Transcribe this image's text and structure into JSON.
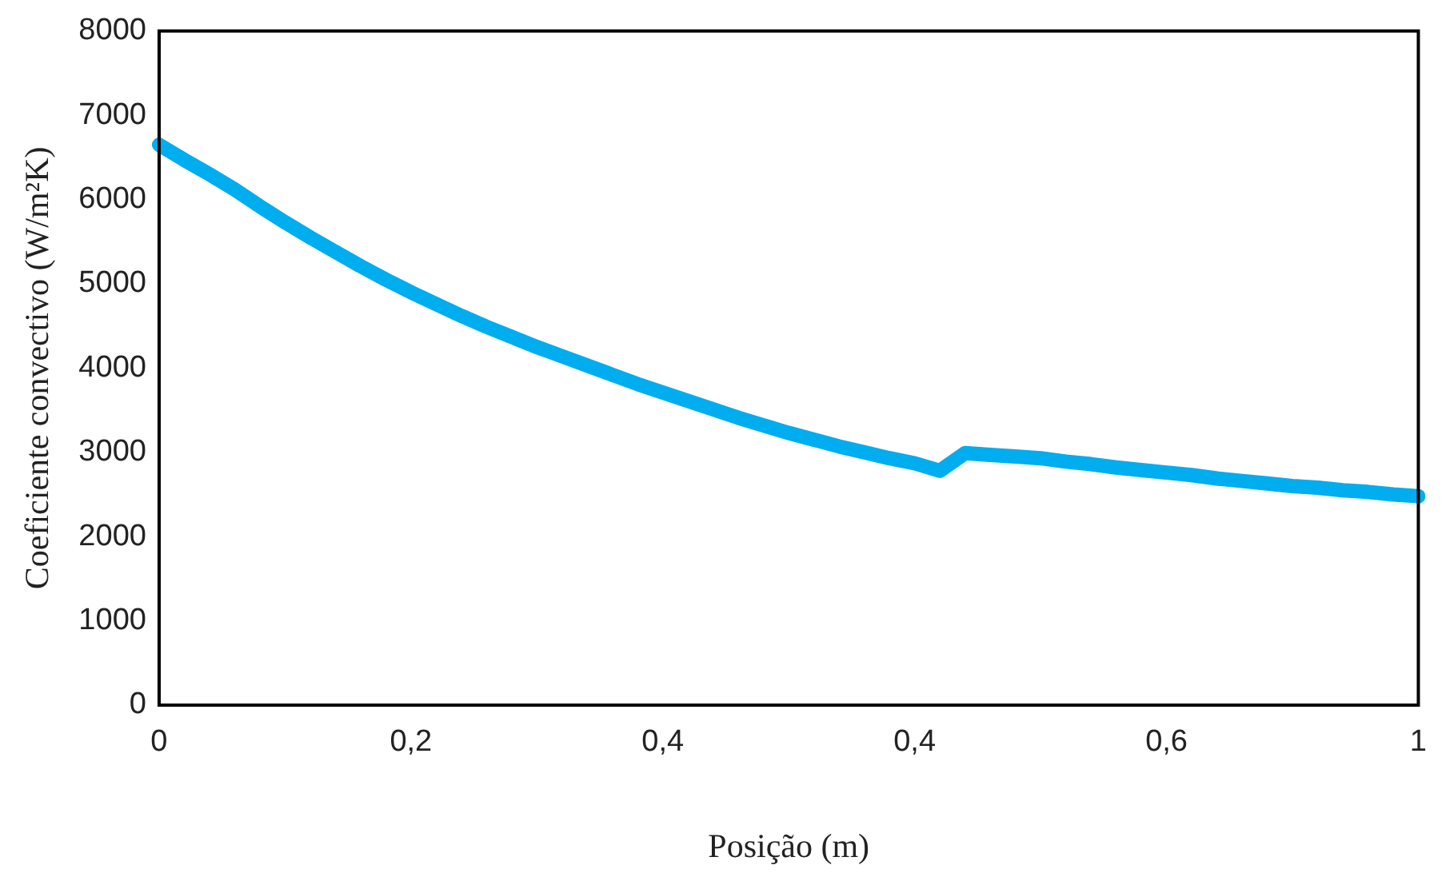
{
  "chart_data": {
    "type": "line",
    "xlabel": "Posição (m)",
    "ylabel": "Coeficiente convectivo (W/m²K)",
    "categories": [
      "0",
      null,
      null,
      null,
      null,
      null,
      null,
      null,
      null,
      null,
      "0,2",
      null,
      null,
      null,
      null,
      null,
      null,
      null,
      null,
      null,
      "0,4",
      null,
      null,
      null,
      null,
      null,
      null,
      null,
      null,
      null,
      "0,4",
      null,
      null,
      null,
      null,
      null,
      null,
      null,
      null,
      null,
      "0,6",
      null,
      null,
      null,
      null,
      null,
      null,
      null,
      null,
      null,
      "1"
    ],
    "ylim": [
      0,
      8000
    ],
    "yticks": [
      0,
      1000,
      2000,
      3000,
      4000,
      5000,
      6000,
      7000,
      8000
    ],
    "grid": false,
    "legend": false,
    "marker": "none",
    "line_style": "solid",
    "series": [
      {
        "color": "#00adef",
        "values": [
          6650,
          6470,
          6300,
          6120,
          5920,
          5730,
          5550,
          5380,
          5210,
          5050,
          4900,
          4760,
          4620,
          4490,
          4370,
          4250,
          4140,
          4030,
          3920,
          3810,
          3710,
          3610,
          3510,
          3410,
          3320,
          3230,
          3150,
          3070,
          3000,
          2930,
          2870,
          2780,
          2990,
          2970,
          2950,
          2930,
          2890,
          2860,
          2820,
          2790,
          2760,
          2730,
          2690,
          2660,
          2630,
          2600,
          2580,
          2550,
          2530,
          2500,
          2480
        ]
      }
    ]
  }
}
